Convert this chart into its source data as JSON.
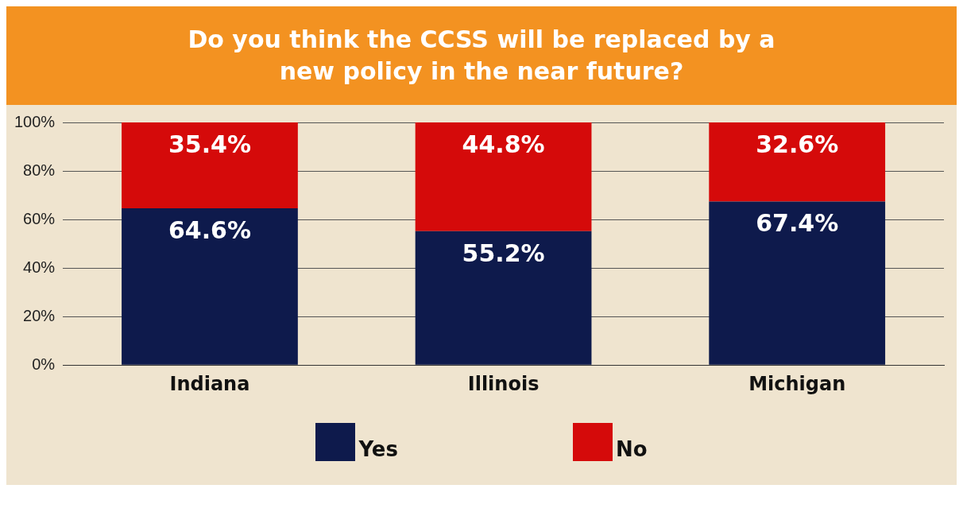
{
  "chart_data": {
    "type": "bar",
    "title": "Do you think the CCSS will be replaced by a new policy in the near future?",
    "categories": [
      "Indiana",
      "Illinois",
      "Michigan"
    ],
    "stacked": true,
    "series": [
      {
        "name": "Yes",
        "color": "#0e1a4c",
        "values": [
          64.6,
          55.2,
          67.4
        ],
        "value_labels": [
          "64.6%",
          "55.2%",
          "67.4%"
        ]
      },
      {
        "name": "No",
        "color": "#d50a0a",
        "values": [
          35.4,
          44.8,
          32.6
        ],
        "value_labels": [
          "35.4%",
          "44.8%",
          "32.6%"
        ]
      }
    ],
    "ylim": [
      0,
      100
    ],
    "yticks": [
      {
        "value": 0,
        "label": "0%"
      },
      {
        "value": 20,
        "label": "20%"
      },
      {
        "value": 40,
        "label": "40%"
      },
      {
        "value": 60,
        "label": "60%"
      },
      {
        "value": 80,
        "label": "80%"
      },
      {
        "value": 100,
        "label": "100%"
      }
    ],
    "grid": "y",
    "legend": "bottom"
  }
}
